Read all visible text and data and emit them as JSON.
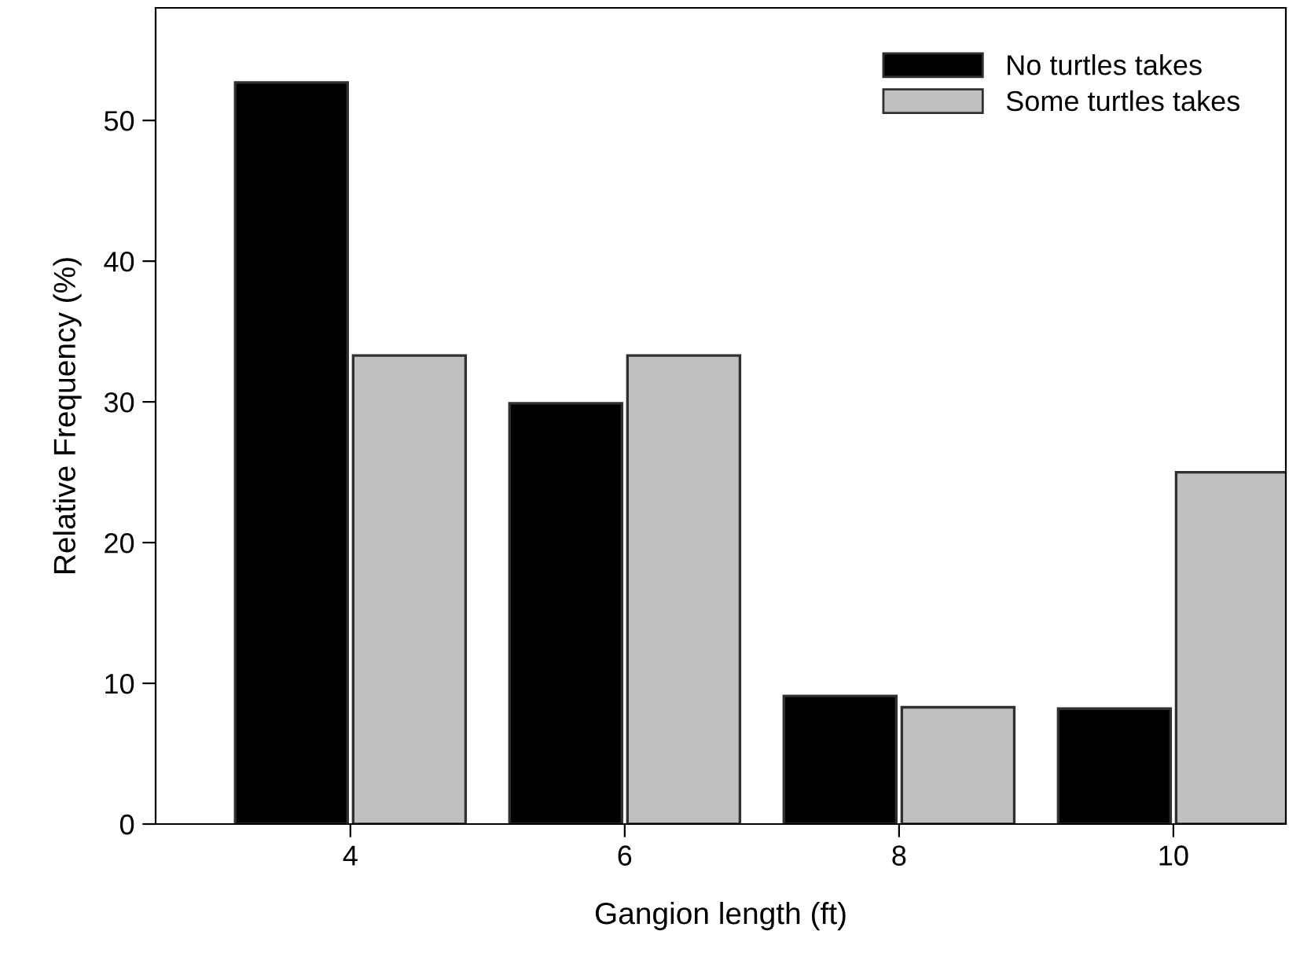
{
  "chart_data": {
    "type": "bar",
    "xlabel": "Gangion length (ft)",
    "ylabel": "Relative Frequency (%)",
    "categories": [
      "4",
      "6",
      "8",
      "10"
    ],
    "series": [
      {
        "name": "No turtles takes",
        "color": "#000000",
        "values": [
          52.7,
          29.9,
          9.1,
          8.2
        ]
      },
      {
        "name": "Some turtles takes",
        "color": "#c0c0c0",
        "values": [
          33.3,
          33.3,
          8.3,
          25
        ]
      }
    ],
    "ylim": [
      0,
      58
    ],
    "yticks": [
      0,
      10,
      20,
      30,
      40,
      50
    ],
    "grid": false,
    "legend": "top right"
  }
}
